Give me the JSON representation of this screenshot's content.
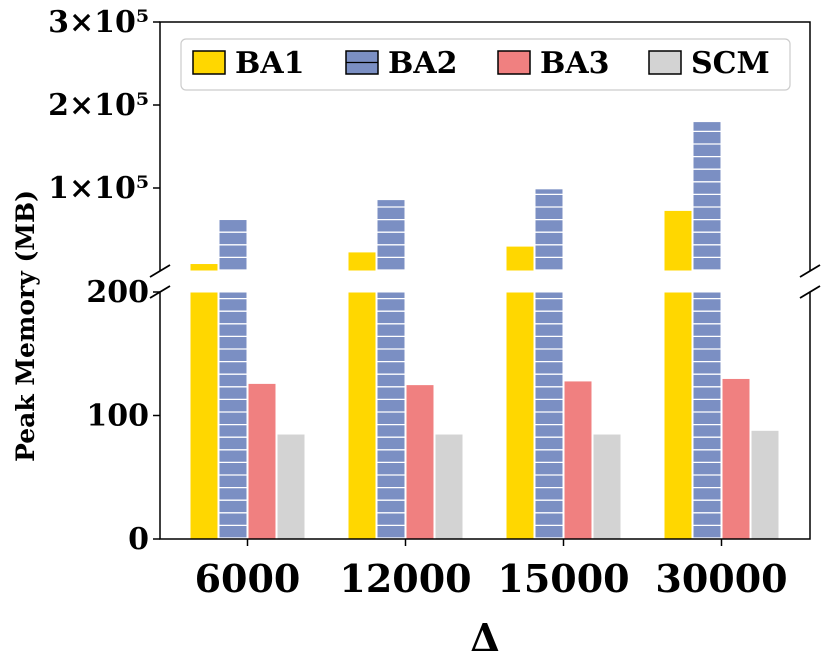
{
  "chart_data": {
    "type": "bar",
    "broken_axis": true,
    "xlabel": "Δ",
    "ylabel": "Peak Memory (MB)",
    "categories": [
      "6000",
      "12000",
      "15000",
      "30000"
    ],
    "series": [
      {
        "name": "BA1",
        "values": [
          9000,
          23000,
          30000,
          73000
        ],
        "color": "#FFD700",
        "hatch": "none"
      },
      {
        "name": "BA2",
        "values": [
          62000,
          86000,
          99000,
          180000
        ],
        "color": "#7B8FC3",
        "hatch": "horizontal"
      },
      {
        "name": "BA3",
        "values": [
          126,
          125,
          128,
          130
        ],
        "color": "#F08080",
        "hatch": "none"
      },
      {
        "name": "SCM",
        "values": [
          85,
          85,
          85,
          88
        ],
        "color": "#D3D3D3",
        "hatch": "none"
      }
    ],
    "lower_axis": {
      "ylim": [
        0,
        200
      ],
      "ticks": [
        0,
        100,
        200
      ],
      "tick_labels": [
        "0",
        "100",
        "200"
      ]
    },
    "upper_axis": {
      "ylim": [
        0,
        300000
      ],
      "ticks": [
        100000,
        200000,
        300000
      ],
      "tick_labels": [
        "1×10⁵",
        "2×10⁵",
        "3×10⁵"
      ]
    },
    "legend": {
      "position": "top",
      "entries": [
        "BA1",
        "BA2",
        "BA3",
        "SCM"
      ]
    }
  }
}
